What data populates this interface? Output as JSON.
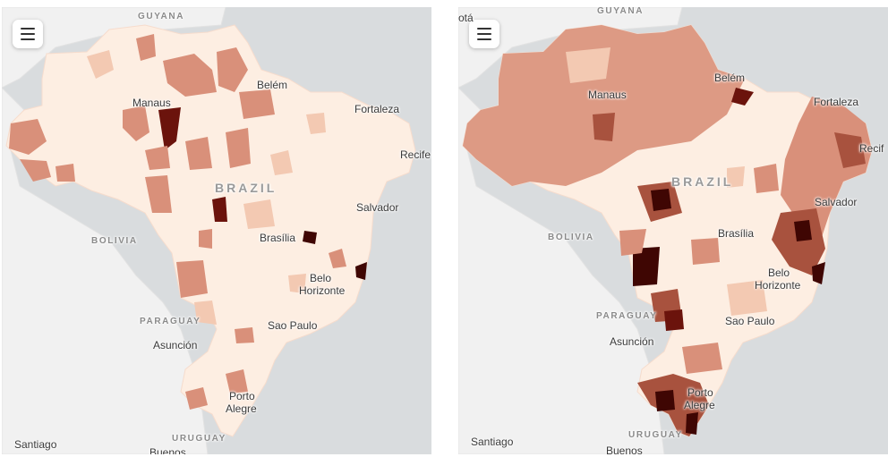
{
  "maps": [
    {
      "id": "left",
      "menu_icon": "hamburger-menu-icon",
      "labels": {
        "guyana": "GUYANA",
        "manaus": "Manaus",
        "belem": "Belém",
        "fortaleza": "Fortaleza",
        "recife": "Recife",
        "brazil": "BRAZIL",
        "salvador": "Salvador",
        "bolivia": "BOLIVIA",
        "brasilia": "Brasília",
        "belo1": "Belo",
        "belo2": "Horizonte",
        "paraguay": "PARAGUAY",
        "saopaulo": "Sao Paulo",
        "asuncion": "Asunción",
        "porto1": "Porto",
        "porto2": "Alegre",
        "uruguay": "URUGUAY",
        "santiago": "Santiago",
        "buenos": "Buenos"
      }
    },
    {
      "id": "right",
      "menu_icon": "hamburger-menu-icon",
      "labels": {
        "bogota": "otá",
        "guyana": "GUYANA",
        "manaus": "Manaus",
        "belem": "Belém",
        "fortaleza": "Fortaleza",
        "recife": "Recif",
        "brazil": "BRAZIL",
        "salvador": "Salvador",
        "bolivia": "BOLIVIA",
        "brasilia": "Brasília",
        "belo1": "Belo",
        "belo2": "Horizonte",
        "paraguay": "PARAGUAY",
        "saopaulo": "Sao Paulo",
        "asuncion": "Asunción",
        "porto1": "Porto",
        "porto2": "Alegre",
        "uruguay": "URUGUAY",
        "santiago": "Santiago",
        "buenos": "Buenos"
      }
    }
  ],
  "colors": {
    "water": "#d9dcde",
    "land": "#f1f1f1",
    "brazil_base": "#fdeee2",
    "shade_1": "#f3c9b2",
    "shade_2": "#d9907a",
    "shade_3": "#a8523e",
    "shade_4": "#6b130c",
    "shade_5": "#3f0603"
  }
}
